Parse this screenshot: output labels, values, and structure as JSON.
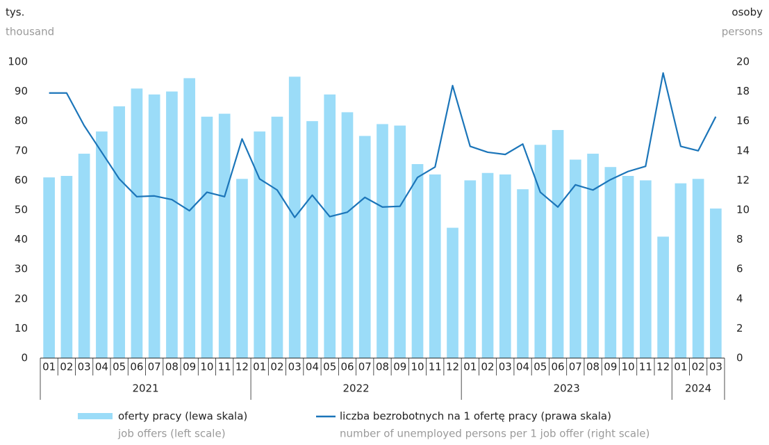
{
  "chart_data": {
    "type": "bar_line",
    "y_label": "tys.",
    "y_label_en": "thousand",
    "y2_label": "osoby",
    "y2_label_en": "persons",
    "year_groups": [
      {
        "label": "2021",
        "months": [
          "01",
          "02",
          "03",
          "04",
          "05",
          "06",
          "07",
          "08",
          "09",
          "10",
          "11",
          "12"
        ]
      },
      {
        "label": "2022",
        "months": [
          "01",
          "02",
          "03",
          "04",
          "05",
          "06",
          "07",
          "08",
          "09",
          "10",
          "11",
          "12"
        ]
      },
      {
        "label": "2023",
        "months": [
          "01",
          "02",
          "03",
          "04",
          "05",
          "06",
          "07",
          "08",
          "09",
          "10",
          "11",
          "12"
        ]
      },
      {
        "label": "2024",
        "months": [
          "01",
          "02",
          "03"
        ]
      }
    ],
    "series": [
      {
        "name": "oferty pracy (lewa skala)",
        "name_en": "job offers (left scale)",
        "type": "bar",
        "axis": "y",
        "color": "#9bdcf8",
        "values": [
          61,
          61.5,
          69,
          76.5,
          85,
          91,
          89,
          90,
          94.5,
          81.5,
          82.5,
          60.5,
          76.5,
          81.5,
          95,
          80,
          89,
          83,
          75,
          79,
          78.5,
          65.5,
          62,
          44,
          60,
          62.5,
          62,
          57,
          72,
          77,
          67,
          69,
          64.5,
          61.5,
          60,
          41,
          59,
          60.5,
          50.5
        ]
      },
      {
        "name": "liczba bezrobotnych na 1 ofertę pracy (prawa skala)",
        "name_en": "number of unemployed persons per 1 job offer (right scale)",
        "type": "line",
        "axis": "y2",
        "color": "#1b75b9",
        "values": [
          17.9,
          17.9,
          15.7,
          13.9,
          12.1,
          10.9,
          10.95,
          10.7,
          9.95,
          11.2,
          10.9,
          14.8,
          12.1,
          11.35,
          9.5,
          11.0,
          9.55,
          9.85,
          10.85,
          10.2,
          10.25,
          12.2,
          12.9,
          18.4,
          14.3,
          13.9,
          13.75,
          14.45,
          11.2,
          10.2,
          11.7,
          11.35,
          12.05,
          12.6,
          12.95,
          19.25,
          14.3,
          14.0,
          16.3
        ]
      }
    ],
    "ylim": [
      0,
      100
    ],
    "yticks": [
      0,
      10,
      20,
      30,
      40,
      50,
      60,
      70,
      80,
      90,
      100
    ],
    "y2lim": [
      0,
      20
    ],
    "y2ticks": [
      0,
      2,
      4,
      6,
      8,
      10,
      12,
      14,
      16,
      18,
      20
    ],
    "grid": false
  }
}
